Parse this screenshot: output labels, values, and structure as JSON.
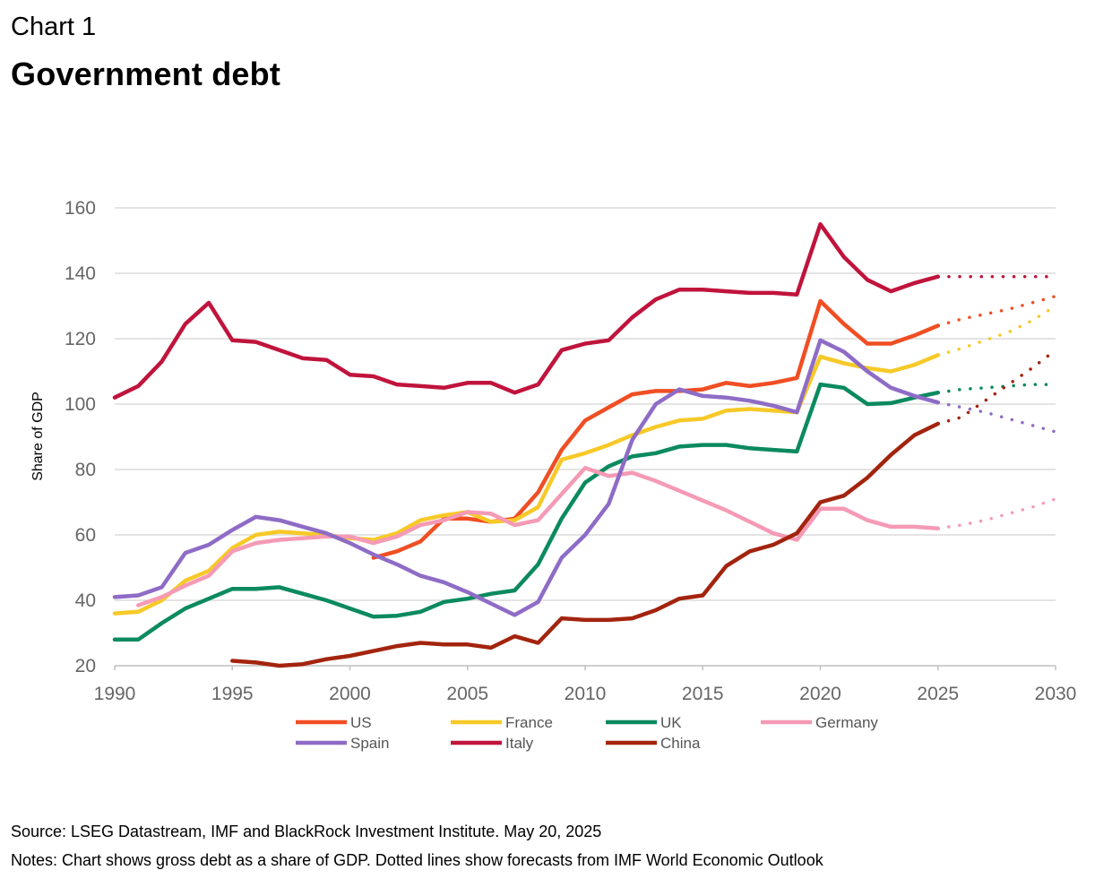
{
  "header": {
    "label": "Chart 1",
    "title": "Government debt"
  },
  "footer": {
    "source": "Source: LSEG Datastream, IMF and BlackRock Investment Institute. May 20, 2025",
    "notes": "Notes: Chart shows gross debt as a share of GDP. Dotted lines show forecasts from IMF World Economic Outlook"
  },
  "chart_data": {
    "type": "line",
    "title": "Government debt",
    "xlabel": "",
    "ylabel": "Share of GDP",
    "xlim": [
      1990,
      2030
    ],
    "ylim": [
      20,
      160
    ],
    "xticks": [
      1990,
      1995,
      2000,
      2005,
      2010,
      2015,
      2020,
      2025,
      2030
    ],
    "yticks": [
      20,
      40,
      60,
      80,
      100,
      120,
      140,
      160
    ],
    "grid": "horizontal",
    "legend_position": "bottom",
    "series": [
      {
        "name": "US",
        "color": "#f04e23",
        "x": [
          2001,
          2002,
          2003,
          2004,
          2005,
          2006,
          2007,
          2008,
          2009,
          2010,
          2011,
          2012,
          2013,
          2014,
          2015,
          2016,
          2017,
          2018,
          2019,
          2020,
          2021,
          2022,
          2023,
          2024,
          2025
        ],
        "values": [
          53,
          55,
          58,
          65,
          65,
          64,
          65,
          73,
          86,
          95,
          99,
          103,
          104,
          104,
          104.5,
          106.5,
          105.5,
          106.5,
          108,
          131.5,
          124.5,
          118.5,
          118.5,
          121,
          124
        ],
        "forecast_x": [
          2026,
          2027,
          2028,
          2029,
          2030
        ],
        "forecast": [
          126,
          127.5,
          129,
          131,
          133
        ]
      },
      {
        "name": "France",
        "color": "#f7c928",
        "x": [
          1990,
          1991,
          1992,
          1993,
          1994,
          1995,
          1996,
          1997,
          1998,
          1999,
          2000,
          2001,
          2002,
          2003,
          2004,
          2005,
          2006,
          2007,
          2008,
          2009,
          2010,
          2011,
          2012,
          2013,
          2014,
          2015,
          2016,
          2017,
          2018,
          2019,
          2020,
          2021,
          2022,
          2023,
          2024,
          2025
        ],
        "values": [
          36,
          36.5,
          40,
          46,
          49,
          56,
          60,
          61,
          60.5,
          60,
          59,
          58.5,
          60.5,
          64.5,
          66,
          67,
          64,
          64.5,
          68.5,
          83,
          85,
          87.5,
          90.5,
          93,
          95,
          95.5,
          98,
          98.5,
          98,
          97.5,
          114.5,
          112.5,
          111,
          110,
          112,
          115
        ],
        "forecast_x": [
          2026,
          2027,
          2028,
          2029,
          2030
        ],
        "forecast": [
          117,
          119.5,
          122,
          125.5,
          130
        ]
      },
      {
        "name": "UK",
        "color": "#0b8a5f",
        "x": [
          1990,
          1991,
          1992,
          1993,
          1994,
          1995,
          1996,
          1997,
          1998,
          1999,
          2000,
          2001,
          2002,
          2003,
          2004,
          2005,
          2006,
          2007,
          2008,
          2009,
          2010,
          2011,
          2012,
          2013,
          2014,
          2015,
          2016,
          2017,
          2018,
          2019,
          2020,
          2021,
          2022,
          2023,
          2024,
          2025
        ],
        "values": [
          28,
          28,
          33,
          37.5,
          40.5,
          43.5,
          43.5,
          44,
          42,
          40,
          37.5,
          35,
          35.3,
          36.5,
          39.5,
          40.5,
          42,
          43,
          51,
          65,
          76,
          81,
          84,
          85,
          87,
          87.5,
          87.5,
          86.5,
          86,
          85.5,
          106,
          105,
          100,
          100.3,
          102,
          103.5
        ],
        "forecast_x": [
          2026,
          2027,
          2028,
          2029,
          2030
        ],
        "forecast": [
          104.5,
          105,
          105.5,
          106,
          106
        ]
      },
      {
        "name": "Germany",
        "color": "#f59ab5",
        "x": [
          1991,
          1992,
          1993,
          1994,
          1995,
          1996,
          1997,
          1998,
          1999,
          2000,
          2001,
          2002,
          2003,
          2004,
          2005,
          2006,
          2007,
          2008,
          2009,
          2010,
          2011,
          2012,
          2013,
          2014,
          2015,
          2016,
          2017,
          2018,
          2019,
          2020,
          2021,
          2022,
          2023,
          2024,
          2025
        ],
        "values": [
          38.5,
          41,
          44.5,
          47.5,
          55,
          57.5,
          58.5,
          59,
          59.5,
          59.5,
          57.5,
          59.5,
          63,
          64.5,
          67,
          66.5,
          63,
          64.5,
          72.5,
          80.5,
          78,
          79,
          76.5,
          73.5,
          70.5,
          67.5,
          64,
          60.5,
          58.5,
          68,
          68,
          64.5,
          62.5,
          62.5,
          62
        ],
        "forecast_x": [
          2026,
          2027,
          2028,
          2029,
          2030
        ],
        "forecast": [
          63,
          64.5,
          66.5,
          68.5,
          71
        ]
      },
      {
        "name": "Spain",
        "color": "#8e6cc6",
        "x": [
          1990,
          1991,
          1992,
          1993,
          1994,
          1995,
          1996,
          1997,
          1998,
          1999,
          2000,
          2001,
          2002,
          2003,
          2004,
          2005,
          2006,
          2007,
          2008,
          2009,
          2010,
          2011,
          2012,
          2013,
          2014,
          2015,
          2016,
          2017,
          2018,
          2019,
          2020,
          2021,
          2022,
          2023,
          2024,
          2025
        ],
        "values": [
          41,
          41.5,
          44,
          54.5,
          57,
          61.5,
          65.5,
          64.5,
          62.5,
          60.5,
          57.5,
          54,
          51,
          47.5,
          45.5,
          42.5,
          39,
          35.5,
          39.5,
          53,
          60,
          69.5,
          89,
          100,
          104.5,
          102.5,
          102,
          101,
          99.5,
          97.5,
          119.5,
          116,
          110,
          105,
          102.5,
          100.5
        ],
        "forecast_x": [
          2026,
          2027,
          2028,
          2029,
          2030
        ],
        "forecast": [
          99,
          97.5,
          95.5,
          93.5,
          91.5
        ]
      },
      {
        "name": "Italy",
        "color": "#c0143c",
        "x": [
          1990,
          1991,
          1992,
          1993,
          1994,
          1995,
          1996,
          1997,
          1998,
          1999,
          2000,
          2001,
          2002,
          2003,
          2004,
          2005,
          2006,
          2007,
          2008,
          2009,
          2010,
          2011,
          2012,
          2013,
          2014,
          2015,
          2016,
          2017,
          2018,
          2019,
          2020,
          2021,
          2022,
          2023,
          2024,
          2025
        ],
        "values": [
          102,
          105.5,
          113,
          124.5,
          131,
          119.5,
          119,
          116.5,
          114,
          113.5,
          109,
          108.5,
          106,
          105.5,
          105,
          106.5,
          106.5,
          103.5,
          106,
          116.5,
          118.5,
          119.5,
          126.5,
          132,
          135,
          135,
          134.5,
          134,
          134,
          133.5,
          155,
          145,
          138,
          134.5,
          137,
          139
        ],
        "forecast_x": [
          2026,
          2027,
          2028,
          2029,
          2030
        ],
        "forecast": [
          139,
          139,
          139,
          139,
          139
        ]
      },
      {
        "name": "China",
        "color": "#a3240e",
        "x": [
          1995,
          1996,
          1997,
          1998,
          1999,
          2000,
          2001,
          2002,
          2003,
          2004,
          2005,
          2006,
          2007,
          2008,
          2009,
          2010,
          2011,
          2012,
          2013,
          2014,
          2015,
          2016,
          2017,
          2018,
          2019,
          2020,
          2021,
          2022,
          2023,
          2024,
          2025
        ],
        "values": [
          21.5,
          21,
          20,
          20.5,
          22,
          23,
          24.5,
          26,
          27,
          26.5,
          26.5,
          25.5,
          29,
          27,
          34.5,
          34,
          34,
          34.5,
          37,
          40.5,
          41.5,
          50.5,
          55,
          57,
          60.5,
          70,
          72,
          77.5,
          84.5,
          90.5,
          94
        ],
        "forecast_x": [
          2026,
          2027,
          2028,
          2029,
          2030
        ],
        "forecast": [
          96,
          101,
          106,
          111,
          116.5
        ]
      }
    ]
  }
}
